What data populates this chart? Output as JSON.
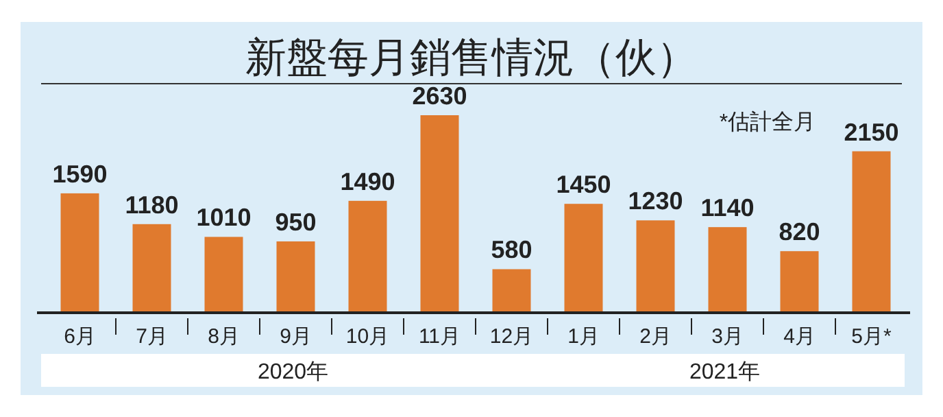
{
  "chart_data": {
    "type": "bar",
    "title": "新盤每月銷售情況（伙）",
    "categories": [
      "6月",
      "7月",
      "8月",
      "9月",
      "10月",
      "11月",
      "12月",
      "1月",
      "2月",
      "3月",
      "4月",
      "5月*"
    ],
    "values": [
      1590,
      1180,
      1010,
      950,
      1490,
      2630,
      580,
      1450,
      1230,
      1140,
      820,
      2150
    ],
    "color": "#e07a2e",
    "data_labels": true,
    "annotations": [
      "*估計全月",
      "2020年",
      "2021年"
    ]
  }
}
